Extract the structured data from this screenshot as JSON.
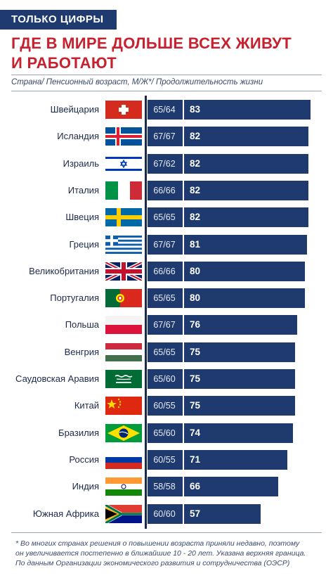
{
  "header": {
    "tag": "ТОЛЬКО ЦИФРЫ",
    "title_line1": "ГДЕ В МИРЕ ДОЛЬШЕ ВСЕХ ЖИВУТ",
    "title_line2": "И РАБОТАЮТ",
    "subtitle": "Страна/ Пенсионный возраст, М/Ж*/ Продолжительность жизни"
  },
  "chart_data": {
    "type": "bar",
    "orientation": "horizontal",
    "bar_color": "#1f3a6e",
    "categories": [
      "Швейцария",
      "Исландия",
      "Израиль",
      "Италия",
      "Швеция",
      "Греция",
      "Великобритания",
      "Португалия",
      "Польша",
      "Венгрия",
      "Саудовская Аравия",
      "Китай",
      "Бразилия",
      "Россия",
      "Индия",
      "Южная Африка"
    ],
    "retirement_age": [
      "65/64",
      "67/67",
      "67/62",
      "66/66",
      "65/65",
      "67/67",
      "66/66",
      "65/65",
      "67/67",
      "65/65",
      "65/60",
      "60/55",
      "65/60",
      "60/55",
      "58/58",
      "60/60"
    ],
    "values": [
      83,
      82,
      82,
      82,
      82,
      81,
      80,
      80,
      76,
      75,
      75,
      75,
      74,
      71,
      66,
      57
    ],
    "flags": [
      "switzerland",
      "iceland",
      "israel",
      "italy",
      "sweden",
      "greece",
      "united-kingdom",
      "portugal",
      "poland",
      "hungary",
      "saudi-arabia",
      "china",
      "brazil",
      "russia",
      "india",
      "south-africa"
    ],
    "xlim": [
      0,
      83
    ]
  },
  "footnote": {
    "line1": "* Во многих странах решения о повышении возраста приняли недавно, поэтому",
    "line2": "он увеличивается постепенно в ближайшие 10 - 20 лет. Указана верхняя граница.",
    "line3": "По данным Организации экономического развития и сотрудничества (ОЭСР)"
  }
}
